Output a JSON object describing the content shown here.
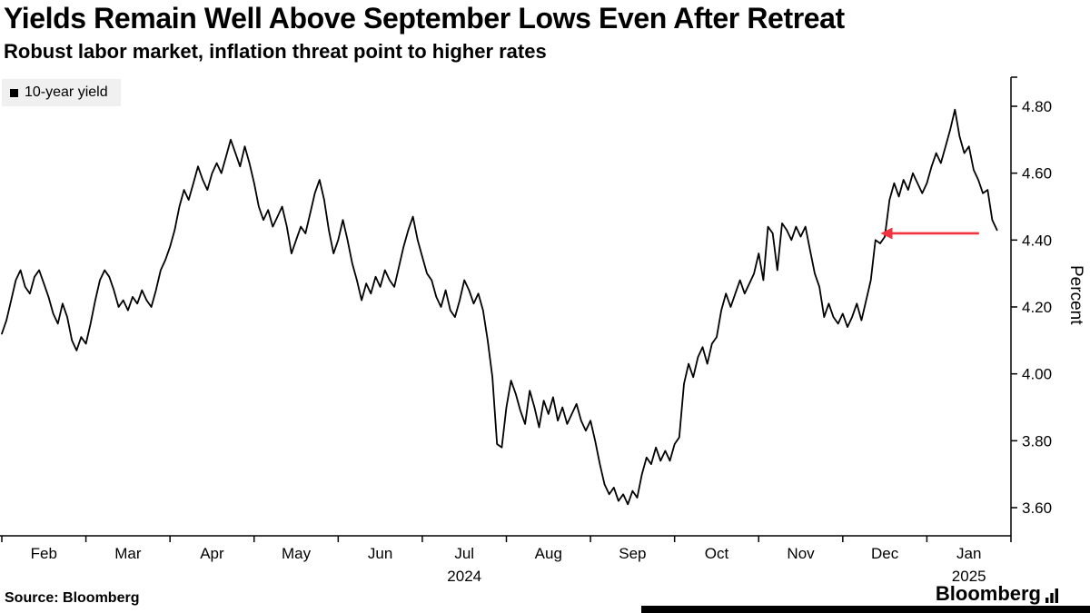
{
  "source": "Source: Bloomberg",
  "brand": "Bloomberg",
  "legend": {
    "label": "10-year yield",
    "swatch_color": "#000000"
  },
  "chart_data": {
    "type": "line",
    "title": "Yields Remain Well Above September Lows Even After Retreat",
    "subtitle": "Robust labor market, inflation threat point to higher rates",
    "series_name": "10-year yield",
    "ylabel": "Percent",
    "ylim": [
      3.52,
      4.88
    ],
    "yticks": [
      3.6,
      3.8,
      4.0,
      4.2,
      4.4,
      4.6,
      4.8
    ],
    "x_months": [
      "Feb",
      "Mar",
      "Apr",
      "May",
      "Jun",
      "Jul",
      "Aug",
      "Sep",
      "Oct",
      "Nov",
      "Dec",
      "Jan"
    ],
    "year_labels": [
      {
        "text": "2024",
        "center_month": 5.5
      },
      {
        "text": "2025",
        "center_month": 11.5
      }
    ],
    "line_color": "#000000",
    "grid": false,
    "legend_position": "top-left",
    "points_per_month": 18,
    "values": [
      4.12,
      4.16,
      4.22,
      4.28,
      4.31,
      4.26,
      4.24,
      4.29,
      4.31,
      4.27,
      4.23,
      4.18,
      4.15,
      4.21,
      4.17,
      4.1,
      4.07,
      4.11,
      4.09,
      4.15,
      4.22,
      4.28,
      4.31,
      4.29,
      4.25,
      4.2,
      4.22,
      4.19,
      4.23,
      4.21,
      4.25,
      4.22,
      4.2,
      4.25,
      4.31,
      4.34,
      4.38,
      4.43,
      4.5,
      4.55,
      4.52,
      4.57,
      4.62,
      4.58,
      4.55,
      4.6,
      4.63,
      4.6,
      4.65,
      4.7,
      4.66,
      4.62,
      4.68,
      4.63,
      4.57,
      4.5,
      4.46,
      4.49,
      4.44,
      4.47,
      4.5,
      4.44,
      4.36,
      4.4,
      4.44,
      4.42,
      4.48,
      4.54,
      4.58,
      4.52,
      4.43,
      4.36,
      4.4,
      4.46,
      4.4,
      4.33,
      4.28,
      4.22,
      4.27,
      4.24,
      4.29,
      4.26,
      4.31,
      4.28,
      4.26,
      4.32,
      4.38,
      4.43,
      4.47,
      4.4,
      4.35,
      4.3,
      4.28,
      4.23,
      4.2,
      4.25,
      4.19,
      4.17,
      4.22,
      4.28,
      4.25,
      4.21,
      4.24,
      4.19,
      4.1,
      3.99,
      3.79,
      3.78,
      3.9,
      3.98,
      3.94,
      3.89,
      3.85,
      3.95,
      3.9,
      3.84,
      3.92,
      3.88,
      3.93,
      3.86,
      3.9,
      3.85,
      3.88,
      3.91,
      3.86,
      3.83,
      3.86,
      3.8,
      3.73,
      3.67,
      3.64,
      3.66,
      3.62,
      3.64,
      3.61,
      3.65,
      3.63,
      3.7,
      3.75,
      3.73,
      3.78,
      3.74,
      3.77,
      3.74,
      3.79,
      3.81,
      3.97,
      4.03,
      3.99,
      4.05,
      4.08,
      4.03,
      4.09,
      4.11,
      4.19,
      4.24,
      4.2,
      4.24,
      4.28,
      4.24,
      4.27,
      4.3,
      4.36,
      4.28,
      4.44,
      4.42,
      4.31,
      4.45,
      4.43,
      4.4,
      4.44,
      4.41,
      4.44,
      4.37,
      4.3,
      4.26,
      4.17,
      4.21,
      4.17,
      4.15,
      4.18,
      4.14,
      4.17,
      4.21,
      4.16,
      4.22,
      4.28,
      4.4,
      4.39,
      4.41,
      4.52,
      4.57,
      4.53,
      4.58,
      4.55,
      4.6,
      4.57,
      4.54,
      4.57,
      4.62,
      4.66,
      4.63,
      4.68,
      4.73,
      4.79,
      4.71,
      4.66,
      4.68,
      4.61,
      4.58,
      4.54,
      4.55,
      4.46,
      4.43
    ],
    "annotation": {
      "type": "arrow",
      "direction": "left",
      "color": "#f2333f",
      "y_value": 4.42,
      "head_month": 10.45,
      "tail_month": 11.62
    }
  }
}
